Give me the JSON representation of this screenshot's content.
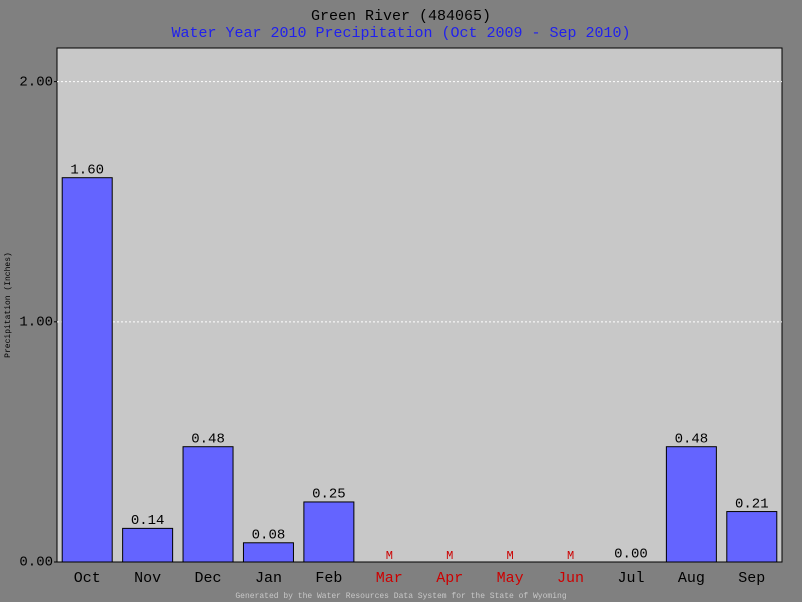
{
  "chart_data": {
    "type": "bar",
    "title": "Green River (484065)",
    "subtitle": "Water Year 2010 Precipitation (Oct 2009 - Sep 2010)",
    "y_label": "Precipitation (Inches)",
    "footer": "Generated by the Water Resources Data System for the State of Wyoming",
    "categories": [
      "Oct",
      "Nov",
      "Dec",
      "Jan",
      "Feb",
      "Mar",
      "Apr",
      "May",
      "Jun",
      "Jul",
      "Aug",
      "Sep"
    ],
    "values": [
      1.6,
      0.14,
      0.48,
      0.08,
      0.25,
      null,
      null,
      null,
      null,
      0,
      0.48,
      0.21
    ],
    "value_labels": [
      "1.60",
      "0.14",
      "0.48",
      "0.08",
      "0.25",
      "M",
      "M",
      "M",
      "M",
      "0.00",
      "0.48",
      "0.21"
    ],
    "color": "#6464ff",
    "missing_color": "#cc0000",
    "ylim": [
      0,
      2.14
    ],
    "yticks": [
      {
        "value": 0,
        "label": "0.00"
      },
      {
        "value": 1,
        "label": "1.00"
      },
      {
        "value": 2,
        "label": "2.00"
      }
    ],
    "grid": true
  }
}
